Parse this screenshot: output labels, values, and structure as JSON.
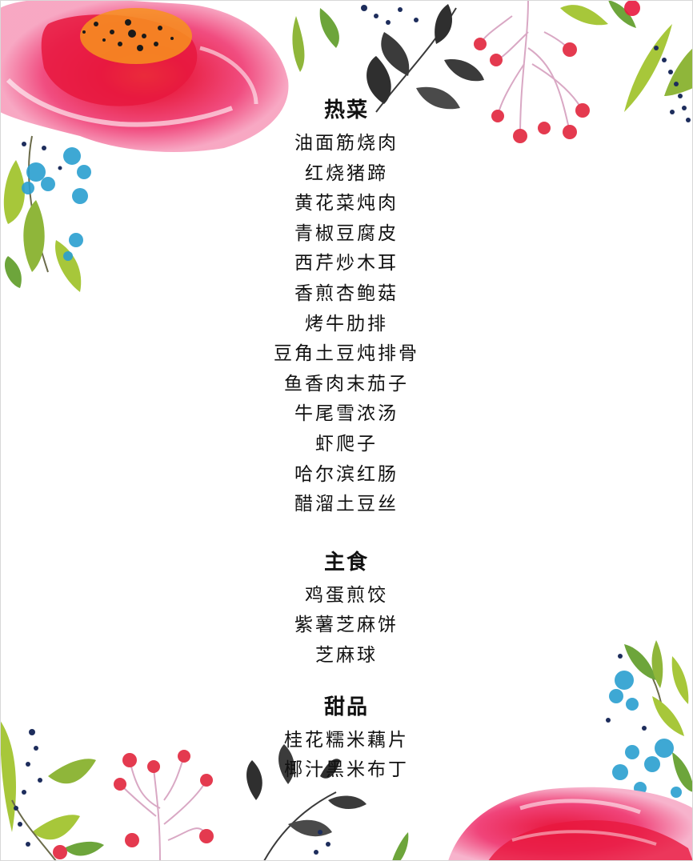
{
  "menu": {
    "sections": [
      {
        "title": "热菜",
        "items": [
          "油面筋烧肉",
          "红烧猪蹄",
          "黄花菜炖肉",
          "青椒豆腐皮",
          "西芹炒木耳",
          "香煎杏鲍菇",
          "烤牛肋排",
          "豆角土豆炖排骨",
          "鱼香肉末茄子",
          "牛尾雪浓汤",
          "虾爬子",
          "哈尔滨红肠",
          "醋溜土豆丝"
        ]
      },
      {
        "title": "主食",
        "items": [
          "鸡蛋煎饺",
          "紫薯芝麻饼",
          "芝麻球"
        ]
      },
      {
        "title": "甜品",
        "items": [
          "桂花糯米藕片",
          "椰汁黑米布丁"
        ]
      }
    ]
  },
  "decor": {
    "colors": {
      "rose_pink": "#f0447a",
      "rose_red": "#e8183e",
      "rose_light": "#f7a3c0",
      "rose_center": "#f7921e",
      "leaf_green": "#a7c73a",
      "leaf_dark": "#2f2f2f",
      "berry_red": "#e43a4f",
      "stem_pink": "#d9a8c4",
      "blue_petal": "#2a9fd0",
      "navy_dot": "#1d2d5c"
    },
    "icons": [
      "watercolor-rose",
      "leaf-sprig",
      "berry-cluster",
      "blue-flower",
      "navy-buds"
    ]
  }
}
